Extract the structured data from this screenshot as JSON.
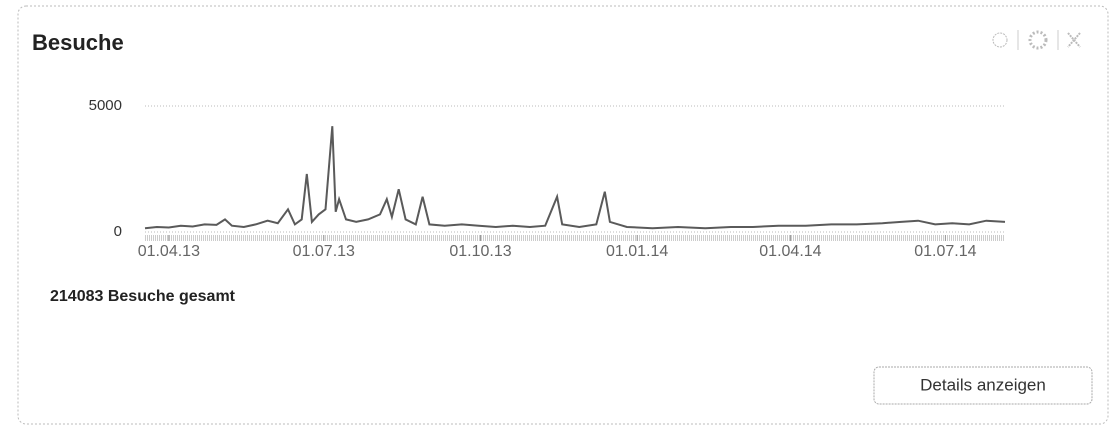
{
  "title": "Besuche",
  "chart_data": {
    "type": "line",
    "color": "#5a5a5a",
    "x": [
      "2013-03-18",
      "2013-03-25",
      "2013-04-01",
      "2013-04-08",
      "2013-04-15",
      "2013-04-22",
      "2013-04-29",
      "2013-05-04",
      "2013-05-08",
      "2013-05-15",
      "2013-05-22",
      "2013-05-29",
      "2013-06-04",
      "2013-06-10",
      "2013-06-14",
      "2013-06-18",
      "2013-06-21",
      "2013-06-24",
      "2013-06-28",
      "2013-07-02",
      "2013-07-06",
      "2013-07-08",
      "2013-07-10",
      "2013-07-14",
      "2013-07-20",
      "2013-07-27",
      "2013-08-03",
      "2013-08-07",
      "2013-08-10",
      "2013-08-14",
      "2013-08-18",
      "2013-08-24",
      "2013-08-28",
      "2013-09-01",
      "2013-09-10",
      "2013-09-20",
      "2013-09-30",
      "2013-10-10",
      "2013-10-20",
      "2013-10-30",
      "2013-11-08",
      "2013-11-15",
      "2013-11-18",
      "2013-11-28",
      "2013-12-08",
      "2013-12-13",
      "2013-12-16",
      "2013-12-26",
      "2014-01-10",
      "2014-01-25",
      "2014-02-10",
      "2014-02-25",
      "2014-03-10",
      "2014-03-25",
      "2014-04-10",
      "2014-04-25",
      "2014-05-10",
      "2014-05-25",
      "2014-06-05",
      "2014-06-15",
      "2014-06-25",
      "2014-07-05",
      "2014-07-15",
      "2014-07-25",
      "2014-08-05"
    ],
    "values": [
      150,
      200,
      180,
      250,
      220,
      300,
      280,
      500,
      250,
      200,
      300,
      450,
      350,
      900,
      300,
      500,
      2300,
      400,
      700,
      900,
      4200,
      800,
      1300,
      500,
      400,
      500,
      700,
      1300,
      600,
      1700,
      500,
      300,
      1400,
      300,
      250,
      300,
      250,
      200,
      250,
      200,
      250,
      1400,
      300,
      200,
      300,
      1600,
      400,
      200,
      150,
      200,
      150,
      200,
      200,
      250,
      250,
      300,
      300,
      350,
      400,
      450,
      300,
      350,
      300,
      450,
      400
    ],
    "xlim": [
      "2013-03-18",
      "2014-08-05"
    ],
    "xticks": [
      {
        "value": "2013-04-01",
        "label": "01.04.13"
      },
      {
        "value": "2013-07-01",
        "label": "01.07.13"
      },
      {
        "value": "2013-10-01",
        "label": "01.10.13"
      },
      {
        "value": "2014-01-01",
        "label": "01.01.14"
      },
      {
        "value": "2014-04-01",
        "label": "01.04.14"
      },
      {
        "value": "2014-07-01",
        "label": "01.07.14"
      }
    ],
    "ylim": [
      0,
      5000
    ],
    "yticks": [
      0,
      5000
    ],
    "grid": true
  },
  "total": "214083 Besuche gesamt",
  "button": "Details anzeigen"
}
